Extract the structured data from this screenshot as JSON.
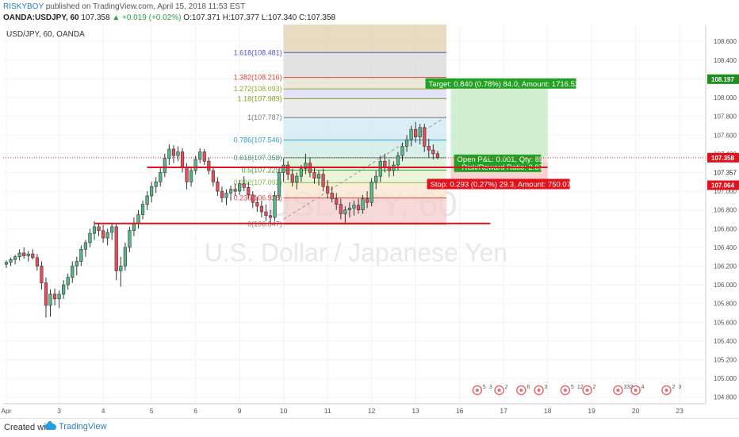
{
  "header": {
    "user": "RISKYBOY",
    "published": " published on TradingView.com, April 15, 2018 11:53 EST",
    "symbol": "OANDA:USDJPY, 60",
    "last": "107.358",
    "change": "▲ +0.019 (+0.02%)",
    "ohlc": "O:107.371 H:107.377 L:107.340 C:107.358"
  },
  "footer": {
    "created": "Created with",
    "brand": "TradingView"
  },
  "chart_data": {
    "type": "candlestick",
    "pane_label": "USD/JPY, 60, OANDA",
    "watermark_symbol": "USDJPY, 60",
    "watermark_name": "U.S. Dollar / Japanese Yen",
    "ylim": [
      104.73,
      108.78
    ],
    "y_ticks": [
      "104.800",
      "105.000",
      "105.200",
      "105.400",
      "105.600",
      "105.800",
      "106.000",
      "106.200",
      "106.400",
      "106.600",
      "106.800",
      "107.000",
      "107.200",
      "107.400",
      "107.600",
      "107.800",
      "108.000",
      "108.200",
      "108.400",
      "108.600"
    ],
    "x_ticks": [
      {
        "label": "Apr",
        "idx": 0
      },
      {
        "label": "3",
        "idx": 12
      },
      {
        "label": "4",
        "idx": 22
      },
      {
        "label": "5",
        "idx": 33
      },
      {
        "label": "6",
        "idx": 43
      },
      {
        "label": "9",
        "idx": 53
      },
      {
        "label": "10",
        "idx": 63
      },
      {
        "label": "11",
        "idx": 73
      },
      {
        "label": "12",
        "idx": 83
      },
      {
        "label": "13",
        "idx": 93
      },
      {
        "label": "16",
        "idx": 103
      },
      {
        "label": "17",
        "idx": 113
      },
      {
        "label": "18",
        "idx": 123
      },
      {
        "label": "19",
        "idx": 133
      },
      {
        "label": "20",
        "idx": 143
      },
      {
        "label": "23",
        "idx": 153
      }
    ],
    "price_tags": [
      {
        "value": 108.197,
        "label": "108.197",
        "color": "#1e8c1e"
      },
      {
        "value": 107.358,
        "label": "107.358",
        "color": "#e0121b"
      },
      {
        "value": 107.064,
        "label": "107.064",
        "color": "#e0121b"
      }
    ],
    "price_tag_plain": {
      "value": 107.25,
      "label": "107.357"
    },
    "current_price": 107.358,
    "support_lines": [
      {
        "y": 107.255,
        "from_idx": 32,
        "to_idx": 123
      },
      {
        "y": 106.655,
        "from_idx": 20,
        "to_idx": 110
      }
    ],
    "fib": {
      "from_idx": 63,
      "to_idx": 100,
      "levels": [
        {
          "ratio": "0",
          "price": "106.647",
          "label": "0(106.647)",
          "color": "#808080",
          "fill": "#f5cccc"
        },
        {
          "ratio": "0.236",
          "price": "106.928",
          "label": "0.236(106.928)",
          "color": "#e04040",
          "fill": "#f9e6cc"
        },
        {
          "ratio": "0.382",
          "price": "107.092",
          "label": "0.382(107.092)",
          "color": "#7cbf40",
          "fill": "#e5f2cc"
        },
        {
          "ratio": "0.5",
          "price": "107.225",
          "label": "0.5(107.225)",
          "color": "#3aa03a",
          "fill": "#d4efd4"
        },
        {
          "ratio": "0.618",
          "price": "107.358",
          "label": "0.618(107.358)",
          "color": "#3aa090",
          "fill": "#cce9e6"
        },
        {
          "ratio": "0.786",
          "price": "107.546",
          "label": "0.786(107.546)",
          "color": "#2aa0c0",
          "fill": "#cfe8f3"
        },
        {
          "ratio": "1",
          "price": "107.787",
          "label": "1(107.787)",
          "color": "#808080",
          "fill": "#e4e4e4"
        },
        {
          "ratio": "1.18",
          "price": "107.989",
          "label": "1.18(107.989)",
          "color": "#8aa020",
          "fill": "#d8d8f6"
        },
        {
          "ratio": "1.272",
          "price": "108.093",
          "label": "1.272(108.093)",
          "color": "#a0a030",
          "fill": "#e6e0cc"
        },
        {
          "ratio": "1.382",
          "price": "108.216",
          "label": "1.382(108.216)",
          "color": "#e04040",
          "fill": "#d8d8d8"
        },
        {
          "ratio": "1.618",
          "price": "108.481",
          "label": "1.618(108.481)",
          "color": "#5050d0",
          "fill": "#e0cfae"
        }
      ],
      "top_price": 108.78
    },
    "position": {
      "entry": 107.358,
      "target": 108.197,
      "stop": 107.064,
      "from_idx": 101,
      "to_idx": 123,
      "target_label": "Target: 0.840 (0.78%) 84.0, Amount: 1716.52",
      "stop_label": "Stop: 0.293 (0.27%) 29.3, Amount: 750.07",
      "pl_label": "Open P&L: 0.001, Qty: 853",
      "rr_label": "Risk/Reward Ratio: 2.87"
    },
    "trend_line": {
      "from_idx": 63,
      "from_price": 106.7,
      "to_idx": 100,
      "to_price": 107.8
    },
    "events": [
      {
        "idx": 107,
        "count": "5",
        "extra": "3"
      },
      {
        "idx": 112,
        "count": "2"
      },
      {
        "idx": 117,
        "count": "6"
      },
      {
        "idx": 121,
        "count": "3"
      },
      {
        "idx": 127,
        "count": "5",
        "extra": "12"
      },
      {
        "idx": 132,
        "count": "2"
      },
      {
        "idx": 139,
        "count": "332"
      },
      {
        "idx": 143,
        "count": "4"
      },
      {
        "idx": 150,
        "count": "2",
        "extra": "3"
      }
    ],
    "ohlc": [
      [
        106.22,
        106.26,
        106.18,
        106.24
      ],
      [
        106.24,
        106.29,
        106.2,
        106.27
      ],
      [
        106.27,
        106.32,
        106.22,
        106.3
      ],
      [
        106.3,
        106.38,
        106.26,
        106.34
      ],
      [
        106.34,
        106.4,
        106.28,
        106.31
      ],
      [
        106.31,
        106.36,
        106.25,
        106.33
      ],
      [
        106.33,
        106.38,
        106.27,
        106.29
      ],
      [
        106.29,
        106.33,
        106.15,
        106.2
      ],
      [
        106.2,
        106.25,
        105.95,
        106.02
      ],
      [
        106.02,
        106.08,
        105.65,
        105.78
      ],
      [
        105.78,
        105.95,
        105.66,
        105.9
      ],
      [
        105.9,
        105.96,
        105.78,
        105.85
      ],
      [
        105.85,
        105.94,
        105.75,
        105.9
      ],
      [
        105.9,
        106.05,
        105.85,
        106.0
      ],
      [
        106.0,
        106.12,
        105.95,
        106.08
      ],
      [
        106.08,
        106.25,
        106.02,
        106.2
      ],
      [
        106.2,
        106.3,
        106.1,
        106.25
      ],
      [
        106.25,
        106.42,
        106.2,
        106.38
      ],
      [
        106.38,
        106.48,
        106.3,
        106.45
      ],
      [
        106.45,
        106.6,
        106.4,
        106.55
      ],
      [
        106.55,
        106.68,
        106.48,
        106.62
      ],
      [
        106.62,
        106.66,
        106.52,
        106.58
      ],
      [
        106.58,
        106.64,
        106.45,
        106.5
      ],
      [
        106.5,
        106.6,
        106.42,
        106.56
      ],
      [
        106.56,
        106.65,
        106.48,
        106.62
      ],
      [
        106.62,
        106.66,
        106.05,
        106.15
      ],
      [
        106.15,
        106.3,
        105.98,
        106.2
      ],
      [
        106.2,
        106.45,
        106.15,
        106.4
      ],
      [
        106.4,
        106.62,
        106.35,
        106.58
      ],
      [
        106.58,
        106.72,
        106.52,
        106.66
      ],
      [
        106.66,
        106.8,
        106.6,
        106.75
      ],
      [
        106.75,
        106.9,
        106.7,
        106.86
      ],
      [
        106.86,
        107.0,
        106.8,
        106.95
      ],
      [
        106.95,
        107.1,
        106.88,
        107.05
      ],
      [
        107.05,
        107.15,
        106.98,
        107.1
      ],
      [
        107.1,
        107.25,
        107.05,
        107.2
      ],
      [
        107.2,
        107.4,
        107.15,
        107.35
      ],
      [
        107.35,
        107.5,
        107.28,
        107.45
      ],
      [
        107.45,
        107.49,
        107.3,
        107.38
      ],
      [
        107.38,
        107.48,
        107.32,
        107.42
      ],
      [
        107.42,
        107.46,
        107.2,
        107.25
      ],
      [
        107.25,
        107.3,
        107.02,
        107.1
      ],
      [
        107.1,
        107.25,
        107.05,
        107.22
      ],
      [
        107.22,
        107.38,
        107.18,
        107.34
      ],
      [
        107.34,
        107.46,
        107.3,
        107.42
      ],
      [
        107.42,
        107.45,
        107.28,
        107.32
      ],
      [
        107.32,
        107.36,
        107.18,
        107.22
      ],
      [
        107.22,
        107.26,
        107.05,
        107.1
      ],
      [
        107.1,
        107.15,
        106.95,
        107.0
      ],
      [
        107.0,
        107.05,
        106.88,
        106.93
      ],
      [
        106.93,
        107.02,
        106.85,
        106.98
      ],
      [
        106.98,
        107.06,
        106.9,
        107.02
      ],
      [
        107.02,
        107.08,
        106.95,
        107.0
      ],
      [
        107.0,
        107.12,
        106.96,
        107.08
      ],
      [
        107.08,
        107.16,
        107.0,
        107.04
      ],
      [
        107.04,
        107.1,
        106.92,
        106.96
      ],
      [
        106.96,
        107.0,
        106.82,
        106.88
      ],
      [
        106.88,
        106.94,
        106.78,
        106.84
      ],
      [
        106.84,
        106.9,
        106.72,
        106.78
      ],
      [
        106.78,
        106.86,
        106.68,
        106.74
      ],
      [
        106.74,
        106.8,
        106.65,
        106.72
      ],
      [
        106.72,
        107.0,
        106.68,
        106.95
      ],
      [
        106.95,
        107.25,
        106.9,
        107.2
      ],
      [
        107.2,
        107.35,
        107.1,
        107.28
      ],
      [
        107.28,
        107.32,
        107.12,
        107.18
      ],
      [
        107.18,
        107.24,
        107.05,
        107.1
      ],
      [
        107.1,
        107.2,
        107.02,
        107.16
      ],
      [
        107.16,
        107.28,
        107.1,
        107.24
      ],
      [
        107.24,
        107.4,
        107.18,
        107.3
      ],
      [
        107.3,
        107.36,
        107.15,
        107.2
      ],
      [
        107.2,
        107.26,
        107.08,
        107.14
      ],
      [
        107.14,
        107.22,
        107.06,
        107.18
      ],
      [
        107.18,
        107.24,
        107.0,
        107.05
      ],
      [
        107.05,
        107.12,
        106.92,
        106.98
      ],
      [
        106.98,
        107.05,
        106.88,
        106.92
      ],
      [
        106.92,
        106.98,
        106.8,
        106.86
      ],
      [
        106.86,
        106.92,
        106.7,
        106.76
      ],
      [
        106.76,
        106.84,
        106.66,
        106.8
      ],
      [
        106.8,
        106.88,
        106.72,
        106.82
      ],
      [
        106.82,
        106.9,
        106.74,
        106.85
      ],
      [
        106.85,
        106.92,
        106.76,
        106.8
      ],
      [
        106.8,
        106.96,
        106.76,
        106.92
      ],
      [
        106.92,
        107.0,
        106.82,
        106.88
      ],
      [
        106.88,
        107.14,
        106.84,
        107.1
      ],
      [
        107.1,
        107.22,
        107.02,
        107.16
      ],
      [
        107.16,
        107.38,
        107.1,
        107.32
      ],
      [
        107.32,
        107.4,
        107.2,
        107.26
      ],
      [
        107.26,
        107.34,
        107.15,
        107.22
      ],
      [
        107.22,
        107.32,
        107.16,
        107.28
      ],
      [
        107.28,
        107.42,
        107.22,
        107.38
      ],
      [
        107.38,
        107.52,
        107.32,
        107.48
      ],
      [
        107.48,
        107.6,
        107.42,
        107.55
      ],
      [
        107.55,
        107.7,
        107.48,
        107.66
      ],
      [
        107.66,
        107.74,
        107.52,
        107.58
      ],
      [
        107.58,
        107.72,
        107.5,
        107.68
      ],
      [
        107.68,
        107.72,
        107.42,
        107.48
      ],
      [
        107.48,
        107.56,
        107.36,
        107.44
      ],
      [
        107.44,
        107.5,
        107.34,
        107.4
      ],
      [
        107.4,
        107.43,
        107.34,
        107.36
      ]
    ]
  }
}
